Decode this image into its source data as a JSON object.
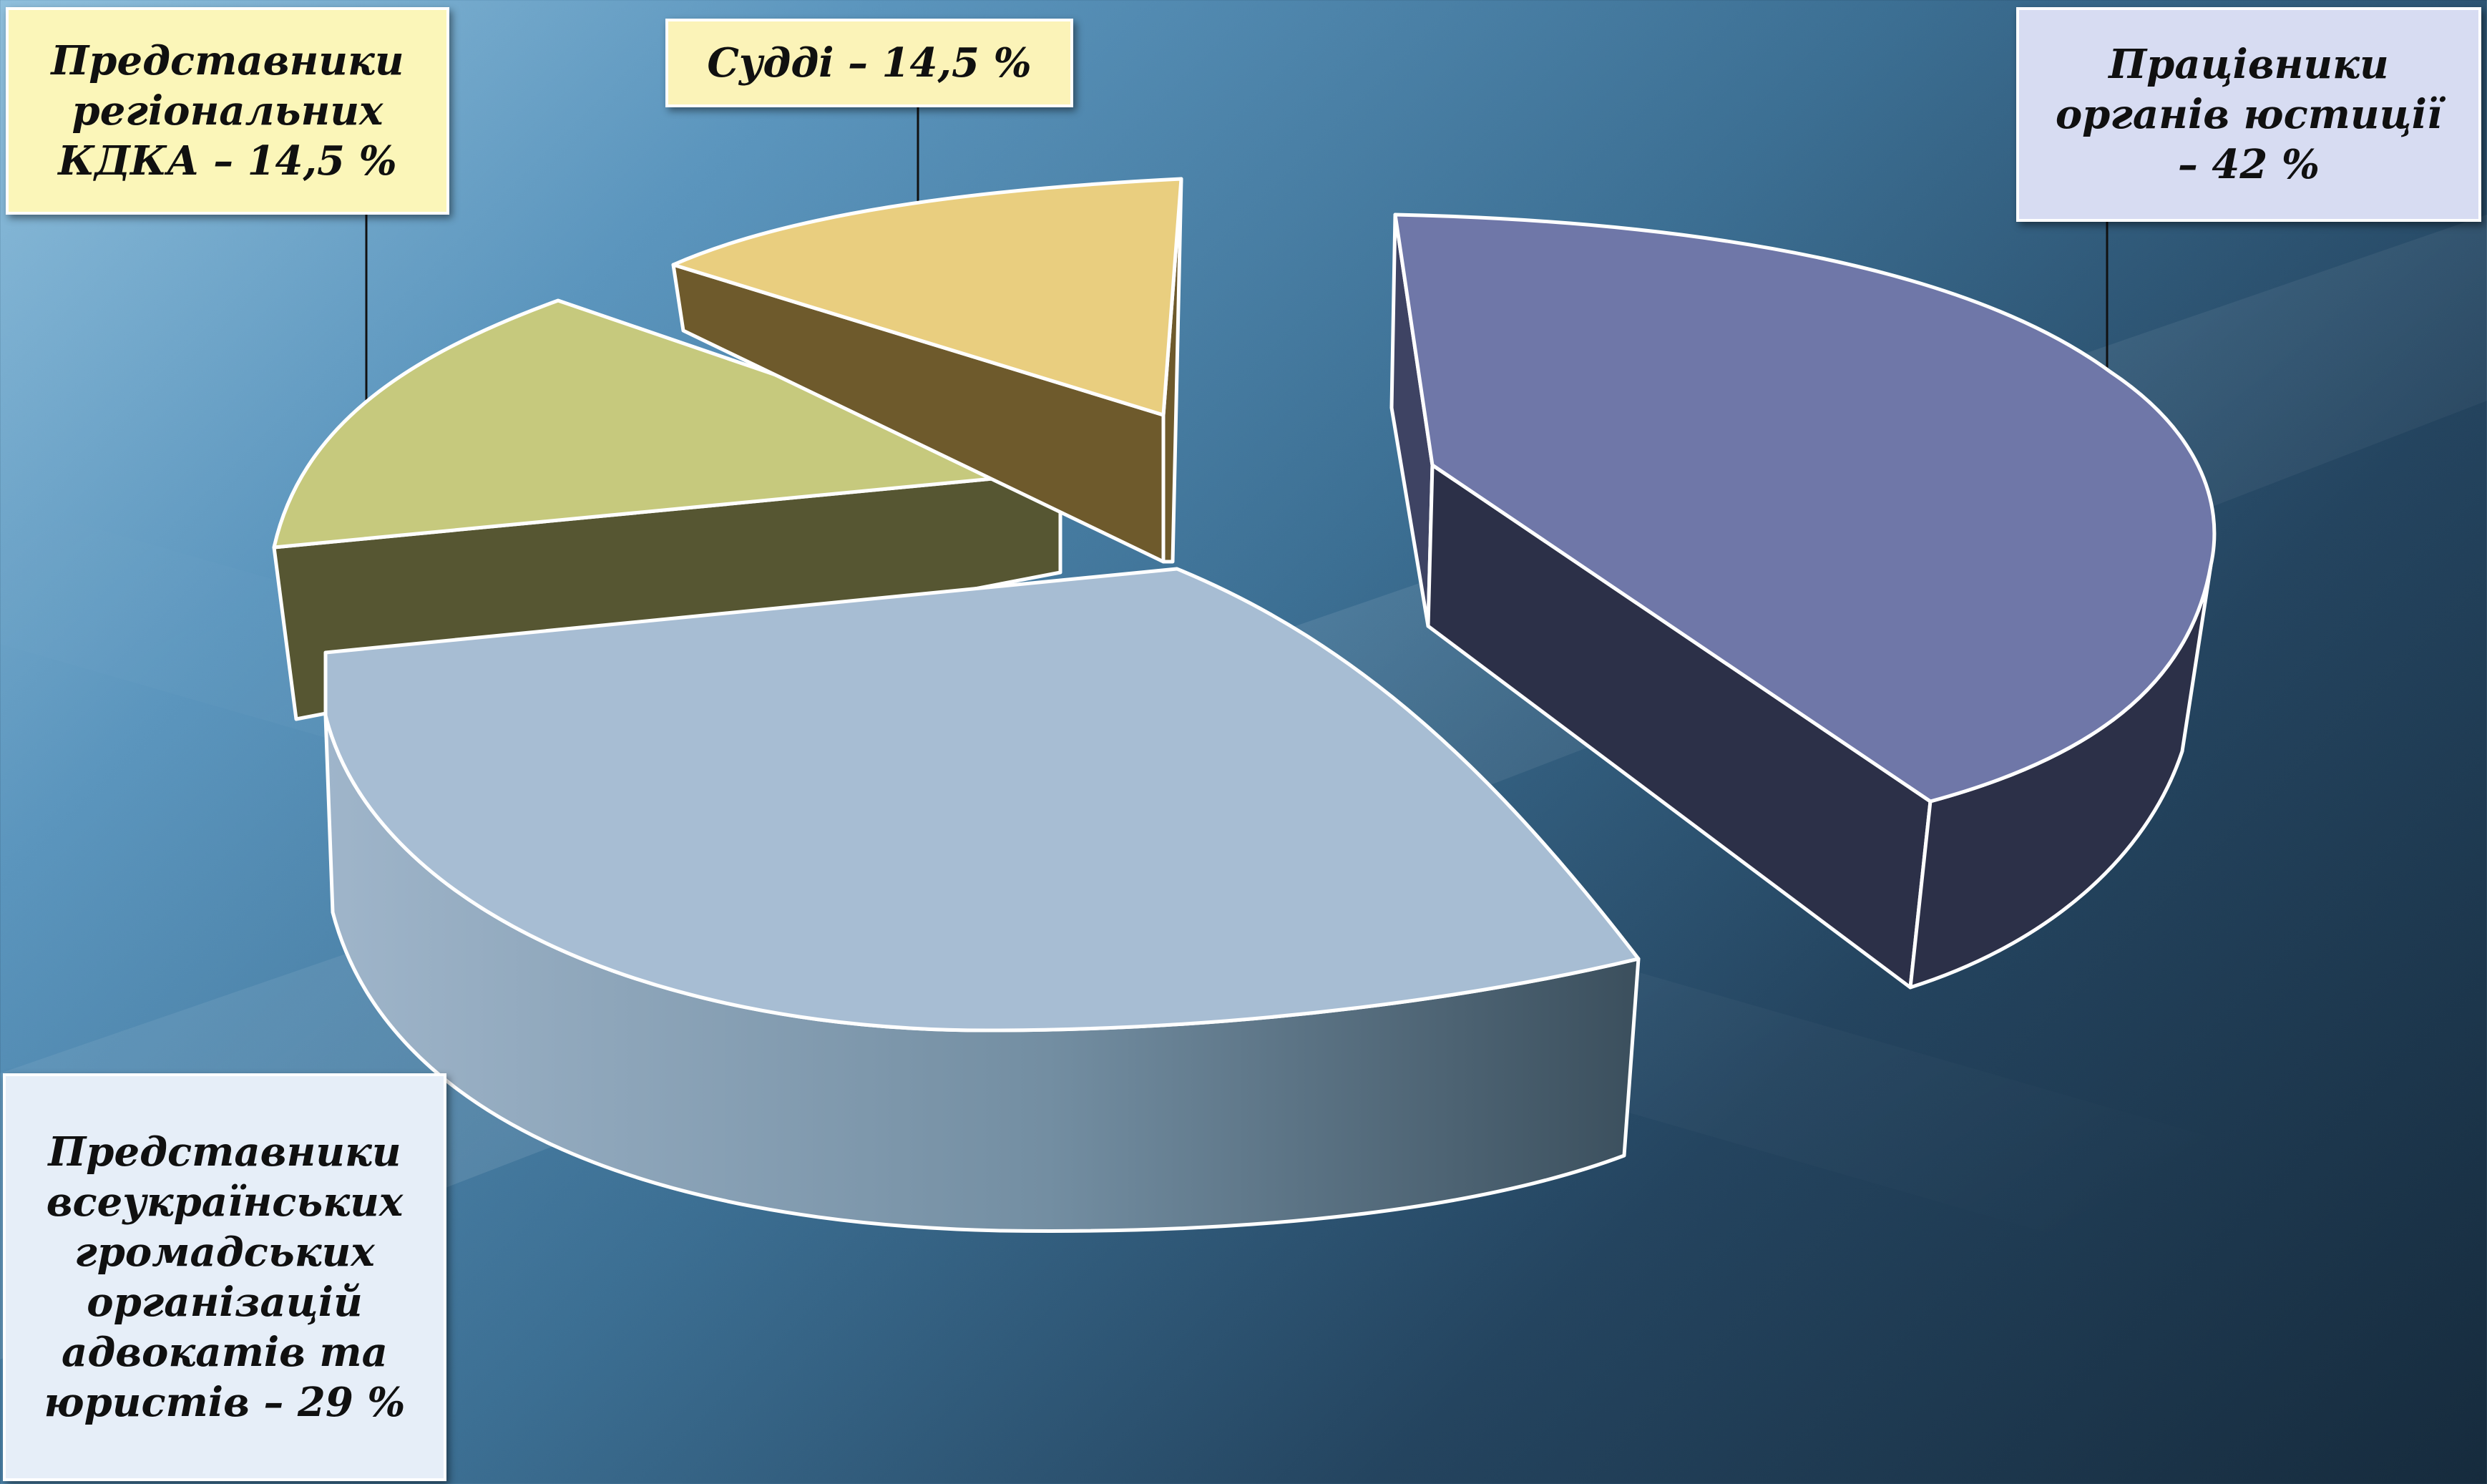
{
  "chart_data": {
    "type": "pie",
    "title": "",
    "slices": [
      {
        "label": "Працівники органів юстиції – 42 %",
        "value": 42,
        "top_color": "#6f77a8",
        "side_color": "#2c3048"
      },
      {
        "label": "Представники всеукраїнських громадських організацій адвокатів та юристів – 29 %",
        "value": 29,
        "top_color": "#a7bdd3",
        "side_color": "#66808f"
      },
      {
        "label": "Представники регіональних КДКА – 14,5 %",
        "value": 14.5,
        "top_color": "#c6c97d",
        "side_color": "#565632"
      },
      {
        "label": "Судді – 14,5 %",
        "value": 14.5,
        "top_color": "#e9ce7f",
        "side_color": "#6e5a2c"
      }
    ],
    "callouts": {
      "justice": "Працівники\nорганів юстиції\n– 42 %",
      "bar": "Представники\nвсеукраїнських\nгромадських\nорганізацій\nадвокатів та\nюристів – 29 %",
      "kdka": "Представники\nрегіональних\nКДКА – 14,5 %",
      "judges": "Судді – 14,5 %"
    },
    "callout_colors": {
      "justice": "#d7dcf2",
      "bar": "#e6eef8",
      "kdka": "#fbf6b9",
      "judges": "#fbf3b8"
    },
    "legend": "none"
  }
}
